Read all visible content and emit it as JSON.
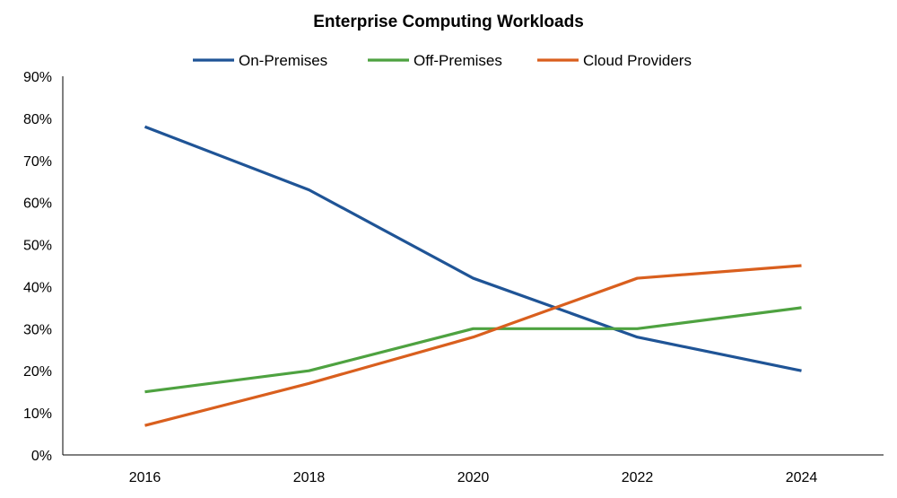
{
  "chart_data": {
    "type": "line",
    "title": "Enterprise Computing Workloads",
    "xlabel": "",
    "ylabel": "",
    "x": [
      2016,
      2018,
      2020,
      2022,
      2024
    ],
    "x_tick_labels": [
      "2016",
      "2018",
      "2020",
      "2022",
      "2024"
    ],
    "xlim": [
      2015,
      2025
    ],
    "ylim": [
      0,
      90
    ],
    "y_ticks": [
      0,
      10,
      20,
      30,
      40,
      50,
      60,
      70,
      80,
      90
    ],
    "y_tick_labels": [
      "0%",
      "10%",
      "20%",
      "30%",
      "40%",
      "50%",
      "60%",
      "70%",
      "80%",
      "90%"
    ],
    "grid": false,
    "legend_position": "top",
    "series": [
      {
        "name": "On-Premises",
        "color": "#1f5496",
        "values": [
          78,
          63,
          42,
          28,
          20
        ]
      },
      {
        "name": "Off-Premises",
        "color": "#4ea240",
        "values": [
          15,
          20,
          30,
          30,
          35
        ]
      },
      {
        "name": "Cloud Providers",
        "color": "#d95f1e",
        "values": [
          7,
          17,
          28,
          42,
          45
        ]
      }
    ]
  }
}
